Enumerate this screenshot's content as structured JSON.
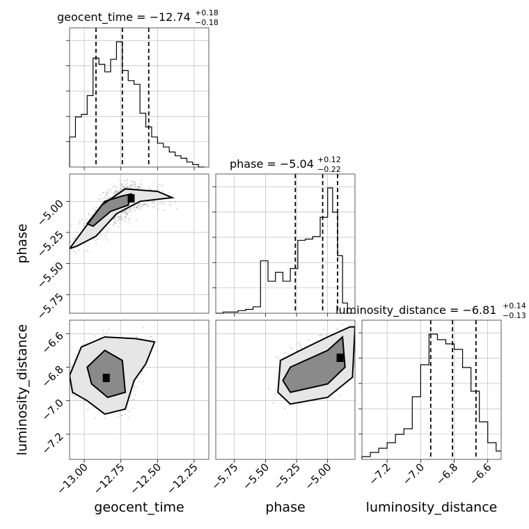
{
  "chart_data": {
    "type": "corner",
    "parameters": [
      {
        "name": "geocent_time",
        "axis_label": "geocent_time",
        "title": {
          "prefix": "geocent_time = −12.74",
          "sup": "+0.18",
          "sub": "−0.18"
        },
        "range": [
          -13.1,
          -12.15
        ],
        "ticks": [
          -13.0,
          -12.75,
          -12.5,
          -12.25
        ],
        "tick_labels": [
          "−13.00",
          "−12.75",
          "−12.50",
          "−12.25"
        ],
        "quantiles": [
          -12.92,
          -12.74,
          -12.56
        ],
        "hist_edges": [
          -13.1,
          -13.06,
          -13.02,
          -12.98,
          -12.94,
          -12.9,
          -12.86,
          -12.82,
          -12.78,
          -12.74,
          -12.7,
          -12.66,
          -12.62,
          -12.58,
          -12.54,
          -12.5,
          -12.46,
          -12.42,
          -12.38,
          -12.34,
          -12.3,
          -12.26,
          -12.22,
          -12.18
        ],
        "hist_counts": [
          0.24,
          0.4,
          0.42,
          0.57,
          0.87,
          0.82,
          0.76,
          0.86,
          1.0,
          0.77,
          0.69,
          0.66,
          0.43,
          0.32,
          0.24,
          0.19,
          0.16,
          0.12,
          0.09,
          0.07,
          0.04,
          0.02,
          0.0
        ]
      },
      {
        "name": "phase",
        "axis_label": "phase",
        "title": {
          "prefix": "phase = −5.04",
          "sup": "+0.12",
          "sub": "−0.22"
        },
        "range": [
          -5.9,
          -4.78
        ],
        "ticks": [
          -5.75,
          -5.5,
          -5.25,
          -5.0
        ],
        "tick_labels": [
          "−5.75",
          "−5.50",
          "−5.25",
          "−5.00"
        ],
        "quantiles": [
          -5.26,
          -5.04,
          -4.92
        ],
        "hist_edges": [
          -5.9,
          -5.84,
          -5.78,
          -5.72,
          -5.66,
          -5.6,
          -5.54,
          -5.48,
          -5.42,
          -5.36,
          -5.3,
          -5.24,
          -5.18,
          -5.12,
          -5.06,
          -5.0,
          -4.96,
          -4.92,
          -4.88,
          -4.84,
          -4.78
        ],
        "hist_counts": [
          0.0,
          0.01,
          0.01,
          0.02,
          0.03,
          0.05,
          0.41,
          0.25,
          0.32,
          0.25,
          0.35,
          0.57,
          0.58,
          0.6,
          0.75,
          0.98,
          0.79,
          0.45,
          0.08,
          0.0
        ]
      },
      {
        "name": "luminosity_distance",
        "axis_label": "luminosity_distance",
        "title": {
          "prefix": "luminosity_distance = −6.81",
          "sup": "+0.14",
          "sub": "−0.13"
        },
        "range": [
          -7.35,
          -6.52
        ],
        "ticks": [
          -7.2,
          -7.0,
          -6.8,
          -6.6
        ],
        "tick_labels": [
          "−7.2",
          "−7.0",
          "−6.8",
          "−6.6"
        ],
        "quantiles": [
          -6.94,
          -6.81,
          -6.67
        ],
        "hist_edges": [
          -7.35,
          -7.3,
          -7.25,
          -7.2,
          -7.15,
          -7.1,
          -7.05,
          -7.0,
          -6.95,
          -6.9,
          -6.85,
          -6.8,
          -6.75,
          -6.7,
          -6.65,
          -6.6,
          -6.55,
          -6.52
        ],
        "hist_counts": [
          0.02,
          0.05,
          0.08,
          0.12,
          0.18,
          0.22,
          0.45,
          0.68,
          0.9,
          0.86,
          0.83,
          0.79,
          0.66,
          0.49,
          0.27,
          0.12,
          0.06
        ]
      }
    ],
    "pairs": [
      {
        "x": "geocent_time",
        "y": "phase",
        "ylim": [
          -5.9,
          -4.78
        ],
        "density_peak": [
          -12.68,
          -4.97
        ],
        "contours_inner": [
          [
            -12.98,
            -5.18
          ],
          [
            -12.86,
            -5.0
          ],
          [
            -12.75,
            -4.96
          ],
          [
            -12.68,
            -4.94
          ],
          [
            -12.7,
            -5.03
          ],
          [
            -12.82,
            -5.08
          ],
          [
            -12.94,
            -5.2
          ]
        ],
        "contours_outer": [
          [
            -13.1,
            -5.38
          ],
          [
            -13.0,
            -5.22
          ],
          [
            -12.88,
            -5.03
          ],
          [
            -12.72,
            -4.9
          ],
          [
            -12.5,
            -4.92
          ],
          [
            -12.4,
            -4.97
          ],
          [
            -12.62,
            -5.0
          ],
          [
            -12.78,
            -5.1
          ],
          [
            -12.92,
            -5.28
          ],
          [
            -13.05,
            -5.36
          ],
          [
            -13.1,
            -5.38
          ]
        ]
      },
      {
        "x": "geocent_time",
        "y": "luminosity_distance",
        "ylim": [
          -7.35,
          -6.52
        ],
        "density_peak": [
          -12.85,
          -6.86
        ],
        "contours_inner": [
          [
            -12.98,
            -6.8
          ],
          [
            -12.86,
            -6.7
          ],
          [
            -12.74,
            -6.76
          ],
          [
            -12.72,
            -6.95
          ],
          [
            -12.84,
            -6.98
          ],
          [
            -12.95,
            -6.9
          ]
        ],
        "contours_outer": [
          [
            -13.1,
            -6.85
          ],
          [
            -13.02,
            -6.68
          ],
          [
            -12.86,
            -6.62
          ],
          [
            -12.65,
            -6.63
          ],
          [
            -12.52,
            -6.65
          ],
          [
            -12.58,
            -6.78
          ],
          [
            -12.66,
            -6.88
          ],
          [
            -12.72,
            -7.05
          ],
          [
            -12.86,
            -7.08
          ],
          [
            -12.98,
            -7.0
          ],
          [
            -13.08,
            -6.95
          ],
          [
            -13.1,
            -6.85
          ]
        ]
      },
      {
        "x": "phase",
        "y": "luminosity_distance",
        "xlim": [
          -5.9,
          -4.78
        ],
        "ylim": [
          -7.35,
          -6.52
        ],
        "density_peak": [
          -4.9,
          -6.74
        ],
        "contours_inner": [
          [
            -5.36,
            -6.88
          ],
          [
            -5.3,
            -6.8
          ],
          [
            -5.0,
            -6.7
          ],
          [
            -4.88,
            -6.62
          ],
          [
            -4.86,
            -6.8
          ],
          [
            -5.0,
            -6.9
          ],
          [
            -5.3,
            -6.95
          ]
        ],
        "contours_outer": [
          [
            -5.4,
            -6.95
          ],
          [
            -5.38,
            -6.76
          ],
          [
            -5.22,
            -6.7
          ],
          [
            -5.0,
            -6.62
          ],
          [
            -4.82,
            -6.56
          ],
          [
            -4.78,
            -6.56
          ],
          [
            -4.8,
            -6.86
          ],
          [
            -5.0,
            -6.98
          ],
          [
            -5.3,
            -7.02
          ],
          [
            -5.4,
            -6.95
          ]
        ]
      }
    ],
    "grid": true
  }
}
